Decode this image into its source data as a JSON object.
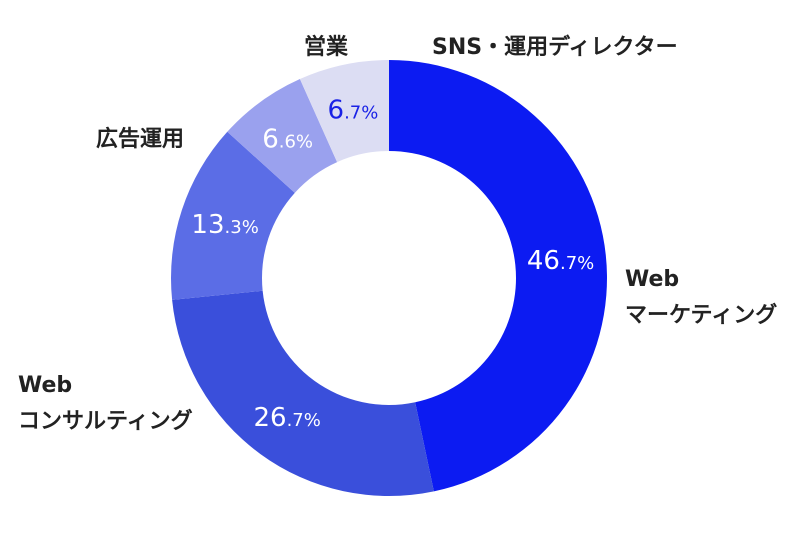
{
  "chart_data": {
    "type": "pie",
    "series": [
      {
        "name": "Web マーケティング",
        "label_lines": [
          "Web",
          "マーケティング"
        ],
        "value": 46.7,
        "value_main": "46",
        "value_suffix": ".7%",
        "color": "#0c1bf2",
        "text_color": "#ffffff"
      },
      {
        "name": "Web コンサルティング",
        "label_lines": [
          "Web",
          "コンサルティング"
        ],
        "value": 26.7,
        "value_main": "26",
        "value_suffix": ".7%",
        "color": "#3a4fdb",
        "text_color": "#ffffff"
      },
      {
        "name": "広告運用",
        "label_lines": [
          "広告運用"
        ],
        "value": 13.3,
        "value_main": "13",
        "value_suffix": ".3%",
        "color": "#5b6de6",
        "text_color": "#ffffff"
      },
      {
        "name": "営業",
        "label_lines": [
          "営業"
        ],
        "value": 6.6,
        "value_main": "6",
        "value_suffix": ".6%",
        "color": "#9aa1ee",
        "text_color": "#ffffff"
      },
      {
        "name": "SNS・運用ディレクター",
        "label_lines": [
          "SNS・運用ディレクター"
        ],
        "value": 6.7,
        "value_main": "6",
        "value_suffix": ".7%",
        "color": "#dcddf3",
        "text_color": "#1a22e6"
      }
    ]
  }
}
